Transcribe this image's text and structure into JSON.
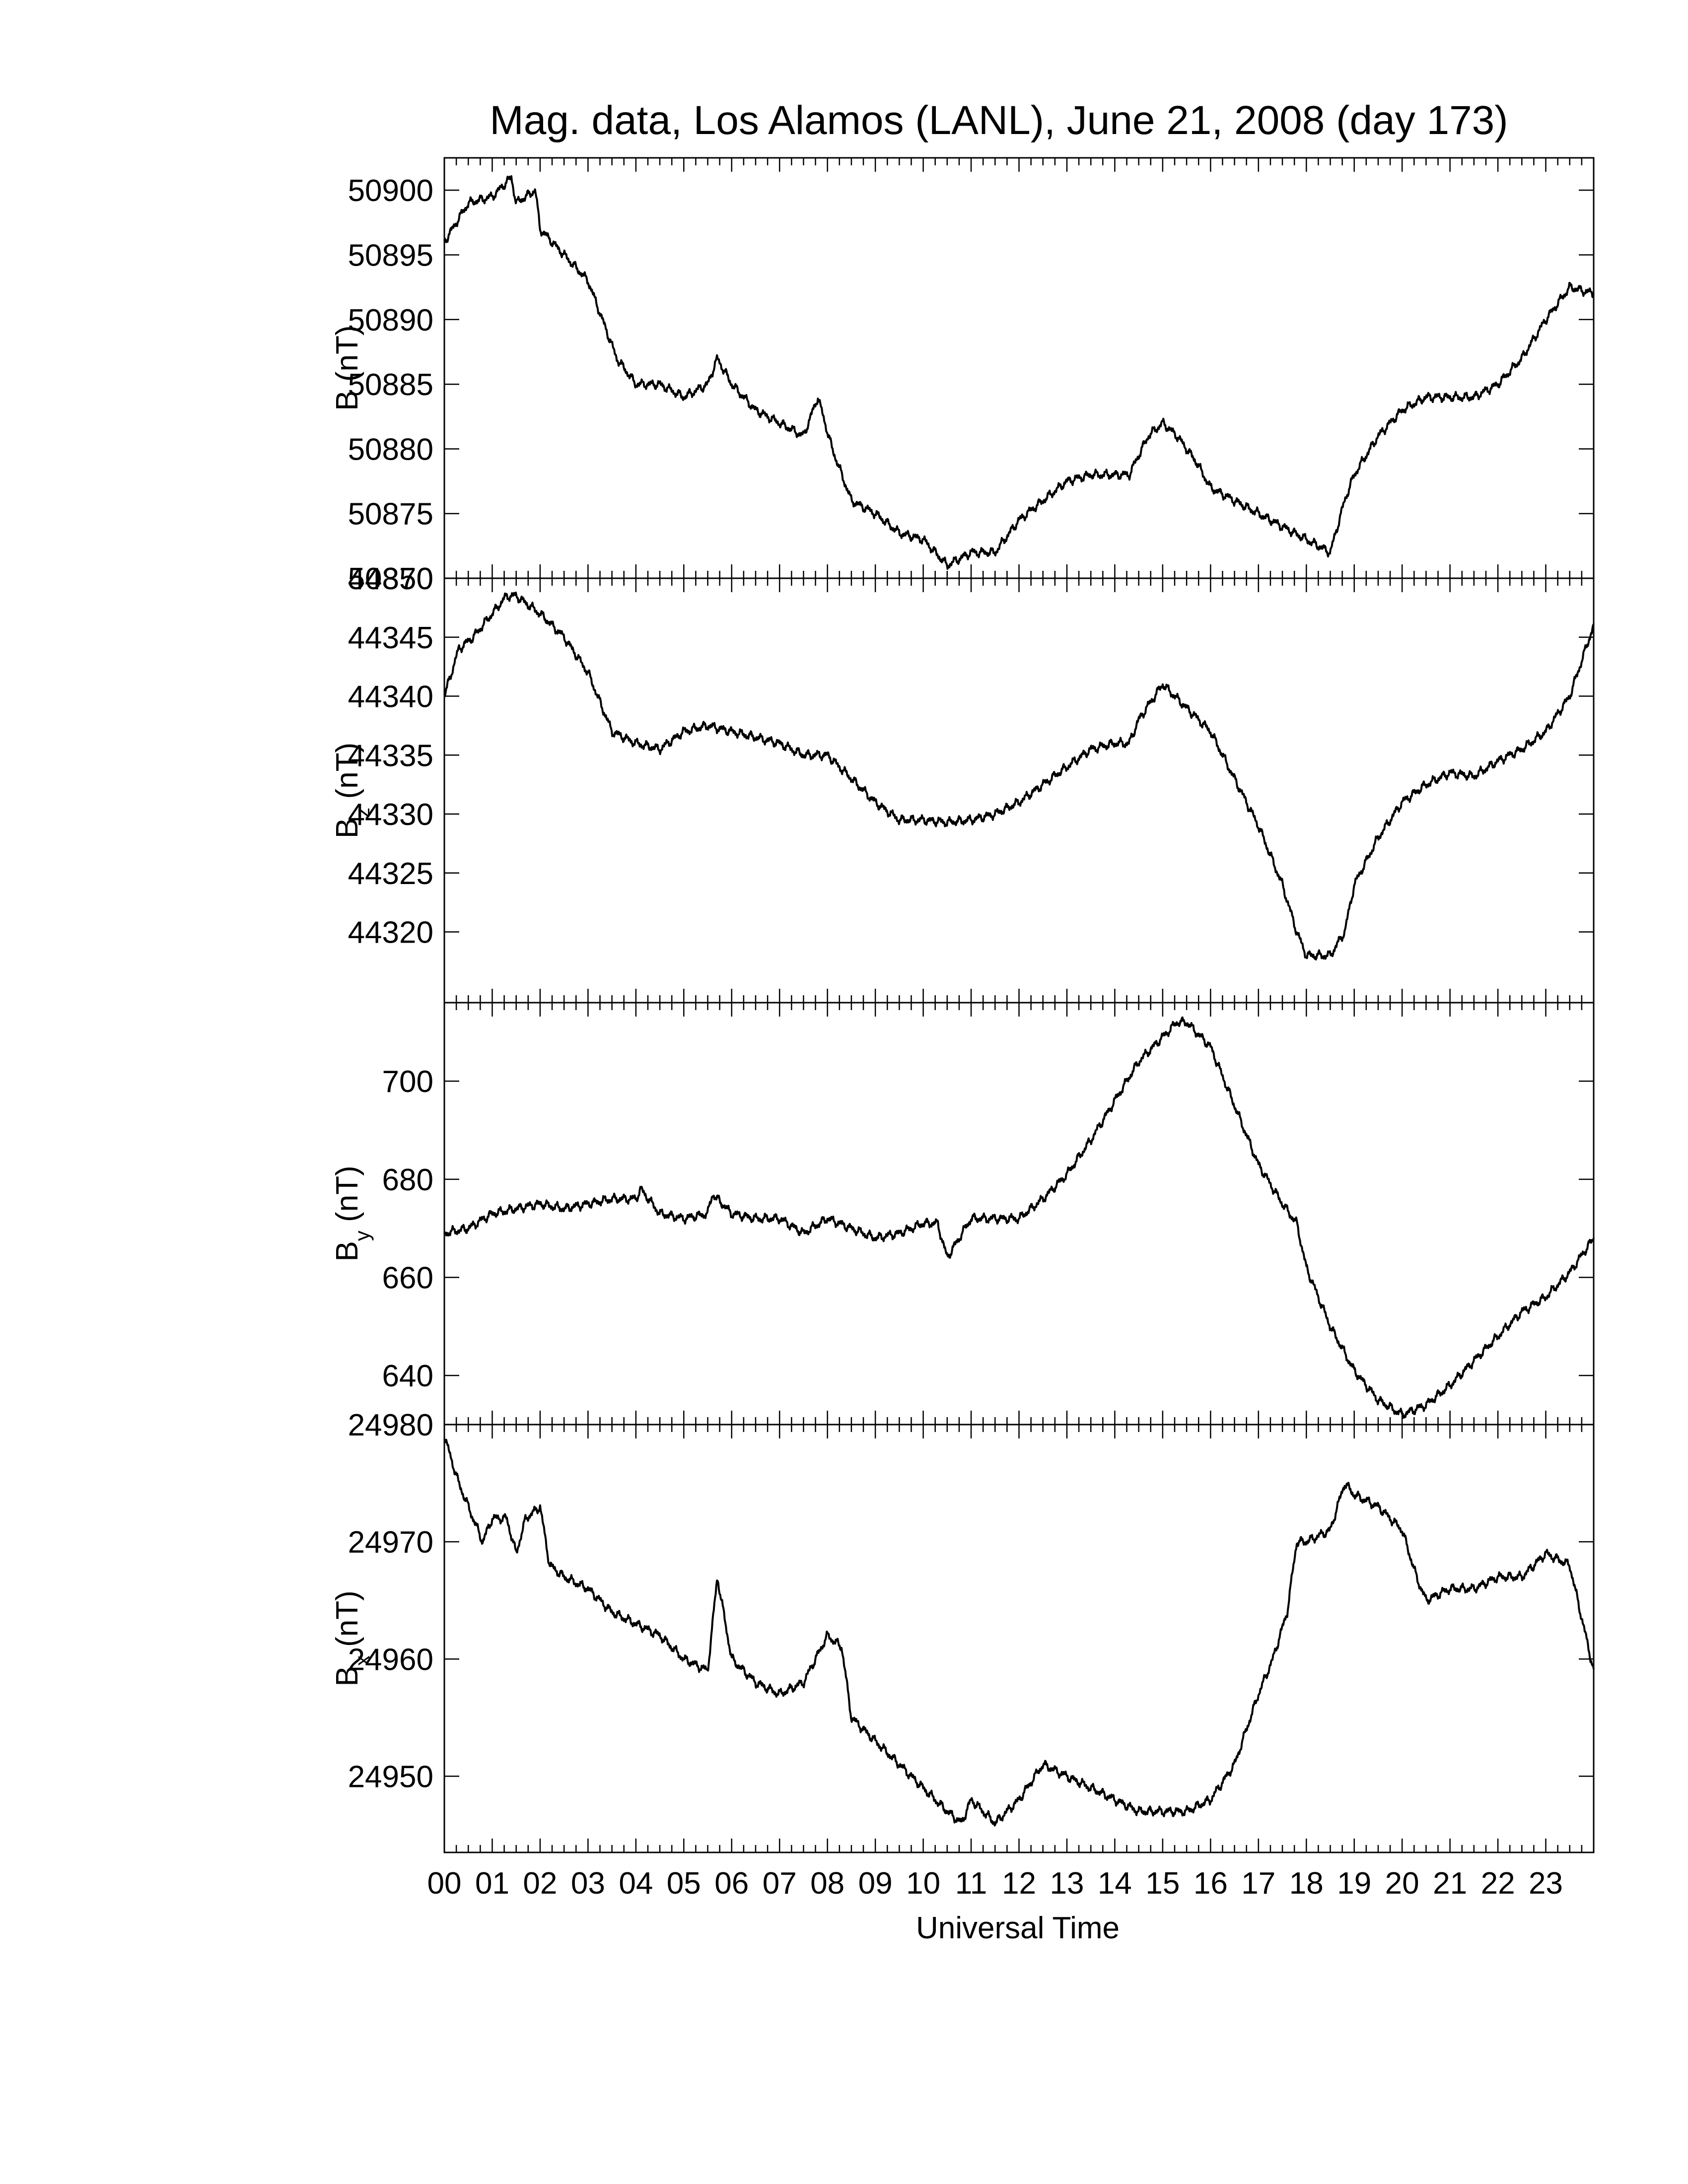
{
  "chart_data": {
    "type": "line",
    "title": "Mag. data, Los Alamos (LANL), June 21, 2008 (day 173)",
    "xlabel": "Universal Time",
    "x_unit": "hour (UT)",
    "xlim": [
      0,
      24
    ],
    "x_tick_labels": [
      "00",
      "01",
      "02",
      "03",
      "04",
      "05",
      "06",
      "07",
      "08",
      "09",
      "10",
      "11",
      "12",
      "13",
      "14",
      "15",
      "16",
      "17",
      "18",
      "19",
      "20",
      "21",
      "22",
      "23"
    ],
    "grid": false,
    "panels": [
      {
        "name": "B",
        "ylabel": "B (nT)",
        "ylabel_main": "B (nT)",
        "ylabel_sub": "",
        "ylim": [
          50870,
          50902.5
        ],
        "y_ticks": [
          50870,
          50875,
          50880,
          50885,
          50890,
          50895,
          50900
        ],
        "x": [
          0.0,
          0.5,
          1.0,
          1.4,
          1.5,
          1.9,
          2.0,
          2.5,
          3.0,
          3.3,
          3.6,
          4.0,
          4.5,
          5.0,
          5.5,
          5.7,
          6.0,
          6.5,
          7.0,
          7.5,
          7.8,
          8.1,
          8.5,
          9.0,
          9.5,
          10.0,
          10.5,
          11.0,
          11.5,
          12.0,
          12.5,
          13.0,
          13.5,
          14.0,
          14.3,
          14.7,
          15.0,
          15.3,
          15.7,
          16.0,
          16.5,
          17.0,
          17.5,
          18.0,
          18.5,
          18.8,
          19.0,
          19.5,
          20.0,
          20.5,
          21.0,
          21.5,
          22.0,
          22.5,
          23.0,
          23.5,
          24.0
        ],
        "values": [
          50896,
          50899,
          50899.5,
          50901,
          50899,
          50900,
          50897,
          50895,
          50893,
          50890,
          50887,
          50885,
          50885,
          50884,
          50885,
          50887,
          50885,
          50883,
          50882,
          50881,
          50884,
          50880,
          50876,
          50875,
          50873.5,
          50873,
          50871,
          50872,
          50872,
          50874.5,
          50876,
          50877.5,
          50878,
          50878,
          50878,
          50881,
          50882,
          50881,
          50879,
          50877,
          50876,
          50875,
          50874,
          50873,
          50872,
          50876,
          50878,
          50881,
          50883,
          50884,
          50884,
          50884,
          50885,
          50887,
          50890,
          50892.5,
          50892
        ]
      },
      {
        "name": "Bz",
        "ylabel": "Bz (nT)",
        "ylabel_main": "B",
        "ylabel_sub": "z",
        "ylabel_unit": "(nT)",
        "ylim": [
          44314,
          44350
        ],
        "y_ticks": [
          44320,
          44325,
          44330,
          44335,
          44340,
          44345,
          44350
        ],
        "x": [
          0.0,
          0.3,
          0.6,
          1.0,
          1.3,
          1.5,
          2.0,
          2.5,
          3.0,
          3.2,
          3.5,
          4.0,
          4.5,
          5.0,
          5.5,
          6.0,
          6.5,
          7.0,
          7.5,
          8.0,
          8.5,
          9.0,
          9.5,
          10.0,
          10.5,
          11.0,
          11.5,
          12.0,
          12.5,
          13.0,
          13.5,
          14.0,
          14.3,
          14.5,
          15.0,
          15.5,
          16.0,
          16.5,
          17.0,
          17.5,
          17.8,
          18.0,
          18.5,
          18.8,
          19.0,
          19.5,
          20.0,
          20.5,
          21.0,
          21.5,
          22.0,
          22.5,
          23.0,
          23.5,
          24.0
        ],
        "values": [
          44340,
          44344,
          44345,
          44347,
          44348.5,
          44348.5,
          44347,
          44345,
          44342,
          44340,
          44337,
          44336,
          44335.5,
          44337,
          44337.5,
          44337,
          44336.5,
          44336,
          44335,
          44335,
          44333,
          44331,
          44329.5,
          44329.5,
          44329.3,
          44329.5,
          44330,
          44331,
          44332.5,
          44334,
          44335.5,
          44336,
          44336,
          44338,
          44341,
          44339,
          44337,
          44333,
          44329,
          44324,
          44320,
          44318,
          44318,
          44320,
          44324,
          44328,
          44331,
          44332.5,
          44333.5,
          44333.2,
          44334.5,
          44335.5,
          44337,
          44340,
          44346
        ]
      },
      {
        "name": "By",
        "ylabel": "By (nT)",
        "ylabel_main": "B",
        "ylabel_sub": "y",
        "ylabel_unit": "(nT)",
        "ylim": [
          630,
          716
        ],
        "y_ticks": [
          640,
          660,
          680,
          700
        ],
        "x": [
          0.0,
          0.5,
          1.0,
          1.5,
          2.0,
          2.5,
          3.0,
          3.5,
          4.0,
          4.1,
          4.5,
          5.0,
          5.5,
          5.6,
          6.0,
          6.5,
          7.0,
          7.5,
          8.0,
          8.5,
          9.0,
          9.5,
          10.0,
          10.3,
          10.5,
          11.0,
          11.5,
          12.0,
          12.5,
          13.0,
          13.5,
          14.0,
          14.5,
          15.0,
          15.3,
          15.5,
          16.0,
          16.5,
          17.0,
          17.5,
          17.8,
          18.0,
          18.5,
          19.0,
          19.5,
          20.0,
          20.5,
          21.0,
          21.5,
          22.0,
          22.5,
          23.0,
          23.5,
          24.0
        ],
        "values": [
          669,
          670,
          673,
          674,
          675,
          674,
          675,
          676,
          676,
          678,
          673,
          672,
          673,
          677,
          673,
          672,
          672,
          669,
          672,
          670,
          668,
          669,
          671,
          671,
          664,
          672,
          672,
          672,
          676,
          681,
          688,
          696,
          704,
          709,
          712,
          712,
          707,
          695,
          683,
          675,
          671,
          662,
          650,
          641,
          635,
          632,
          634,
          638,
          643,
          648,
          653,
          656,
          661,
          668
        ]
      },
      {
        "name": "Bx",
        "ylabel": "Bx (nT)",
        "ylabel_main": "B",
        "ylabel_sub": "x",
        "ylabel_unit": "(nT)",
        "ylim": [
          24943.5,
          24980
        ],
        "y_ticks": [
          24950,
          24960,
          24970,
          24980
        ],
        "x": [
          0.0,
          0.3,
          0.5,
          0.8,
          1.0,
          1.3,
          1.5,
          1.7,
          2.0,
          2.2,
          2.5,
          3.0,
          3.5,
          4.0,
          4.5,
          5.0,
          5.5,
          5.7,
          6.0,
          6.5,
          7.0,
          7.5,
          8.0,
          8.3,
          8.5,
          9.0,
          9.5,
          10.0,
          10.5,
          10.8,
          11.0,
          11.5,
          12.0,
          12.5,
          13.0,
          13.5,
          14.0,
          14.5,
          15.0,
          15.5,
          16.0,
          16.5,
          17.0,
          17.3,
          17.6,
          17.8,
          18.0,
          18.5,
          18.8,
          19.0,
          19.5,
          20.0,
          20.3,
          20.5,
          21.0,
          21.5,
          22.0,
          22.5,
          23.0,
          23.5,
          24.0
        ],
        "values": [
          24979,
          24975,
          24973,
          24970,
          24972,
          24972,
          24969,
          24972,
          24973,
          24968,
          24967,
          24966,
          24964,
          24963,
          24962,
          24960,
          24959,
          24967,
          24960,
          24958,
          24957,
          24958,
          24962,
          24961,
          24955,
          24953,
          24951,
          24949,
          24947,
          24946,
          24948,
          24946,
          24948,
          24951,
          24950,
          24949,
          24948,
          24947,
          24947,
          24947,
          24948,
          24951,
          24957,
          24960,
          24964,
          24970,
          24970,
          24971,
          24975,
          24974,
          24973,
          24971,
          24967,
          24965,
          24966,
          24966,
          24967,
          24967,
          24969,
          24968,
          24959
        ]
      }
    ]
  }
}
